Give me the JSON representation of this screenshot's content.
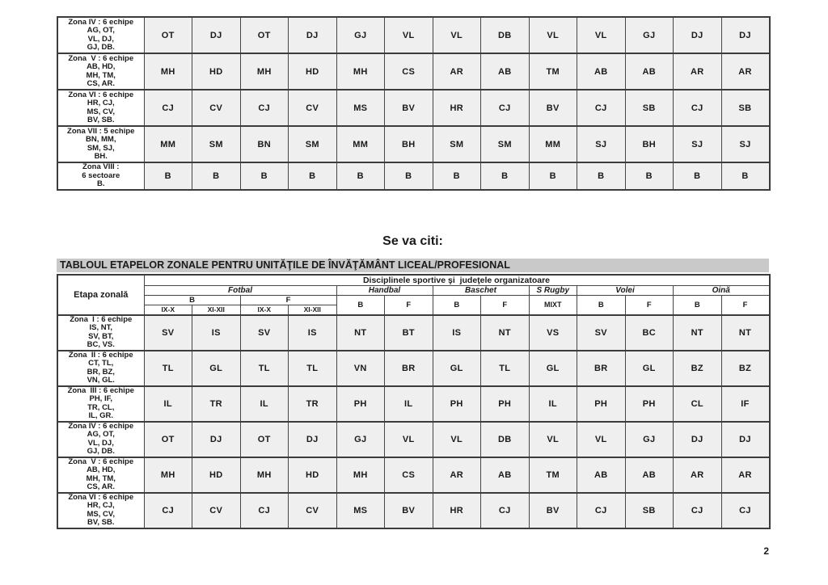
{
  "page": {
    "number": "2"
  },
  "headings": {
    "se_va_citi": "Se va citi:",
    "title": "TABLOUL ETAPELOR ZONALE PENTRU UNITĂŢILE DE ÎNVĂŢĂMÂNT LICEAL/PROFESIONAL"
  },
  "colors": {
    "cell_bg": "#efefef",
    "title_bar_bg": "#c9c9c9",
    "border": "#3c3c3c",
    "text": "#1a1a1a"
  },
  "header": {
    "etapa": "Etapa zonală",
    "disciplines_title": "Disciplinele sportive şi  judeţele organizatoare",
    "sports": [
      {
        "label": "Fotbal",
        "colspan": 4
      },
      {
        "label": "Handbal",
        "colspan": 2
      },
      {
        "label": "Baschet",
        "colspan": 2
      },
      {
        "label": "S Rugby",
        "colspan": 1
      },
      {
        "label": "Volei",
        "colspan": 2
      },
      {
        "label": "Oină",
        "colspan": 2
      }
    ],
    "row3": [
      {
        "label": "B",
        "colspan": 2,
        "rowspan": 1,
        "cls": "gender-cell"
      },
      {
        "label": "F",
        "colspan": 2,
        "rowspan": 1,
        "cls": "gender-cell"
      },
      {
        "label": "B",
        "colspan": 1,
        "rowspan": 2,
        "cls": "gender-cell"
      },
      {
        "label": "F",
        "colspan": 1,
        "rowspan": 2,
        "cls": "gender-cell"
      },
      {
        "label": "B",
        "colspan": 1,
        "rowspan": 2,
        "cls": "gender-cell"
      },
      {
        "label": "F",
        "colspan": 1,
        "rowspan": 2,
        "cls": "gender-cell"
      },
      {
        "label": "MIXT",
        "colspan": 1,
        "rowspan": 2,
        "cls": "mixt-cell"
      },
      {
        "label": "B",
        "colspan": 1,
        "rowspan": 2,
        "cls": "gender-cell"
      },
      {
        "label": "F",
        "colspan": 1,
        "rowspan": 2,
        "cls": "gender-cell"
      },
      {
        "label": "B",
        "colspan": 1,
        "rowspan": 2,
        "cls": "gender-cell"
      },
      {
        "label": "F",
        "colspan": 1,
        "rowspan": 2,
        "cls": "gender-cell"
      }
    ],
    "row4": [
      "IX-X",
      "XI-XII",
      "IX-X",
      "XI-XII"
    ]
  },
  "top_table": {
    "rows": [
      {
        "label_lines": [
          "Zona IV : 6 echipe",
          "AG, OT,",
          "VL, DJ,",
          "GJ, DB."
        ],
        "values": [
          "OT",
          "DJ",
          "OT",
          "DJ",
          "GJ",
          "VL",
          "VL",
          "DB",
          "VL",
          "VL",
          "GJ",
          "DJ",
          "DJ"
        ]
      },
      {
        "label_lines": [
          "Zona  V : 6 echipe",
          "AB, HD,",
          "MH, TM,",
          "CS, AR."
        ],
        "values": [
          "MH",
          "HD",
          "MH",
          "HD",
          "MH",
          "CS",
          "AR",
          "AB",
          "TM",
          "AB",
          "AB",
          "AR",
          "AR"
        ]
      },
      {
        "label_lines": [
          "Zona VI : 6 echipe",
          "HR, CJ,",
          "MS, CV,",
          "BV, SB."
        ],
        "values": [
          "CJ",
          "CV",
          "CJ",
          "CV",
          "MS",
          "BV",
          "HR",
          "CJ",
          "BV",
          "CJ",
          "SB",
          "CJ",
          "SB"
        ]
      },
      {
        "label_lines": [
          "Zona VII : 5 echipe",
          "BN, MM,",
          "SM, SJ,",
          "BH."
        ],
        "values": [
          "MM",
          "SM",
          "BN",
          "SM",
          "MM",
          "BH",
          "SM",
          "SM",
          "MM",
          "SJ",
          "BH",
          "SJ",
          "SJ"
        ]
      },
      {
        "label_lines": [
          "Zona VIII :",
          "6 sectoare",
          "B."
        ],
        "values": [
          "B",
          "B",
          "B",
          "B",
          "B",
          "B",
          "B",
          "B",
          "B",
          "B",
          "B",
          "B",
          "B"
        ]
      }
    ]
  },
  "bottom_table": {
    "rows": [
      {
        "label_lines": [
          "Zona  I : 6 echipe",
          "IS, NT,",
          "SV, BT,",
          "BC, VS."
        ],
        "values": [
          "SV",
          "IS",
          "SV",
          "IS",
          "NT",
          "BT",
          "IS",
          "NT",
          "VS",
          "SV",
          "BC",
          "NT",
          "NT"
        ]
      },
      {
        "label_lines": [
          "Zona  II : 6 echipe",
          "CT, TL,",
          "BR, BZ,",
          "VN, GL."
        ],
        "values": [
          "TL",
          "GL",
          "TL",
          "TL",
          "VN",
          "BR",
          "GL",
          "TL",
          "GL",
          "BR",
          "GL",
          "BZ",
          "BZ"
        ]
      },
      {
        "label_lines": [
          "Zona  III : 6 echipe",
          "PH, IF,",
          "TR, CL,",
          "IL, GR."
        ],
        "values": [
          "IL",
          "TR",
          "IL",
          "TR",
          "PH",
          "IL",
          "PH",
          "PH",
          "IL",
          "PH",
          "PH",
          "CL",
          "IF"
        ]
      },
      {
        "label_lines": [
          "Zona IV : 6 echipe",
          "AG, OT,",
          "VL, DJ,",
          "GJ, DB."
        ],
        "values": [
          "OT",
          "DJ",
          "OT",
          "DJ",
          "GJ",
          "VL",
          "VL",
          "DB",
          "VL",
          "VL",
          "GJ",
          "DJ",
          "DJ"
        ]
      },
      {
        "label_lines": [
          "Zona  V : 6 echipe",
          "AB, HD,",
          "MH, TM,",
          "CS, AR."
        ],
        "values": [
          "MH",
          "HD",
          "MH",
          "HD",
          "MH",
          "CS",
          "AR",
          "AB",
          "TM",
          "AB",
          "AB",
          "AR",
          "AR"
        ]
      },
      {
        "label_lines": [
          "Zona VI : 6 echipe",
          "HR, CJ,",
          "MS, CV,",
          "BV, SB."
        ],
        "values": [
          "CJ",
          "CV",
          "CJ",
          "CV",
          "MS",
          "BV",
          "HR",
          "CJ",
          "BV",
          "CJ",
          "SB",
          "CJ",
          "CJ"
        ]
      }
    ]
  }
}
